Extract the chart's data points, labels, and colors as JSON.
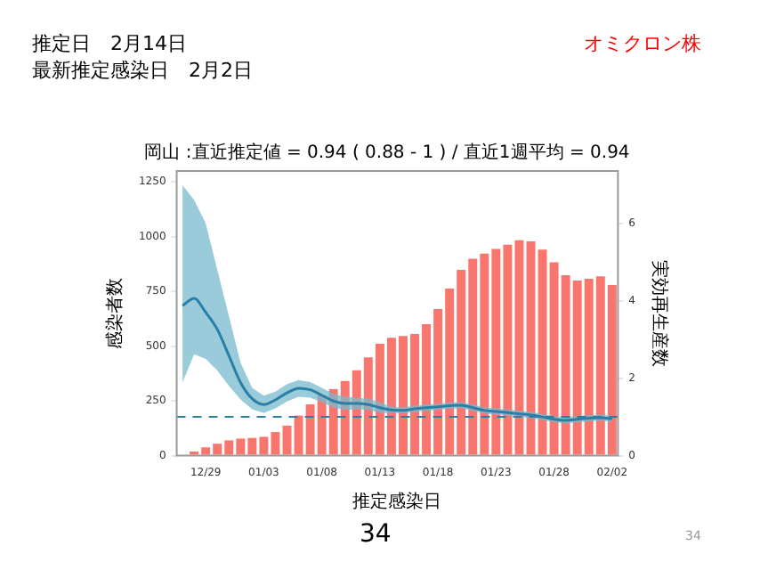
{
  "chart_data": {
    "type": "bar",
    "title": "岡山 :直近推定値 = 0.94 ( 0.88 - 1 ) / 直近1週平均 = 0.94",
    "xlabel": "推定感染日",
    "ylabel": "感染者数",
    "y2label": "実効再生産数",
    "annotations": [
      "推定日　2月14日",
      "最新推定感染日　2月2日",
      "オミクロン株",
      "34",
      "34"
    ],
    "categories": [
      null,
      null,
      "12/29",
      null,
      null,
      null,
      null,
      "01/03",
      null,
      null,
      null,
      null,
      "01/08",
      null,
      null,
      null,
      null,
      "01/13",
      null,
      null,
      null,
      null,
      "01/18",
      null,
      null,
      null,
      null,
      "01/23",
      null,
      null,
      null,
      null,
      "01/28",
      null,
      null,
      null,
      null,
      "02/02"
    ],
    "series": [
      {
        "color": "#f8766d",
        "values": [
          null,
          19,
          38,
          54,
          70,
          78,
          81,
          86,
          108,
          137,
          183,
          234,
          274,
          304,
          341,
          390,
          449,
          511,
          538,
          546,
          556,
          600,
          670,
          763,
          848,
          899,
          923,
          944,
          963,
          984,
          979,
          941,
          883,
          824,
          800,
          808,
          819,
          779
        ]
      },
      {
        "type": "line",
        "axis": "y2",
        "color": "#2a7fa6",
        "values": [
          3.87,
          4.06,
          3.7,
          3.26,
          2.58,
          1.89,
          1.47,
          1.32,
          1.44,
          1.62,
          1.74,
          1.7,
          1.56,
          1.41,
          1.35,
          1.35,
          1.32,
          1.24,
          1.18,
          1.17,
          1.21,
          1.24,
          1.26,
          1.29,
          1.3,
          1.24,
          1.17,
          1.14,
          1.11,
          1.08,
          1.05,
          1.0,
          0.94,
          0.91,
          0.94,
          0.97,
          0.98,
          0.95
        ],
        "upper": [
          6.98,
          6.6,
          6.0,
          4.8,
          3.6,
          2.4,
          1.75,
          1.55,
          1.65,
          1.85,
          1.95,
          1.9,
          1.75,
          1.6,
          1.52,
          1.5,
          1.47,
          1.38,
          1.26,
          1.25,
          1.29,
          1.32,
          1.34,
          1.37,
          1.38,
          1.32,
          1.25,
          1.22,
          1.19,
          1.16,
          1.13,
          1.08,
          1.02,
          0.99,
          1.02,
          1.05,
          1.06,
          1.03
        ],
        "lower": [
          1.89,
          2.62,
          2.5,
          2.2,
          1.8,
          1.45,
          1.2,
          1.1,
          1.22,
          1.4,
          1.52,
          1.5,
          1.38,
          1.24,
          1.18,
          1.2,
          1.18,
          1.1,
          1.1,
          1.09,
          1.13,
          1.16,
          1.18,
          1.21,
          1.22,
          1.16,
          1.09,
          1.06,
          1.03,
          1.0,
          0.97,
          0.92,
          0.86,
          0.83,
          0.86,
          0.89,
          0.9,
          0.87
        ]
      }
    ],
    "ylim": [
      0,
      1300
    ],
    "yticks": [
      0,
      250,
      500,
      750,
      1000,
      1250
    ],
    "y2lim": [
      0,
      7.35
    ],
    "y2ticks": [
      0,
      2,
      4,
      6
    ],
    "ref_lines": [
      {
        "axis": "y2",
        "value": 1.0,
        "color": "#2a7fa6",
        "line_style": "dashed"
      }
    ],
    "grid": false,
    "legend": false
  }
}
